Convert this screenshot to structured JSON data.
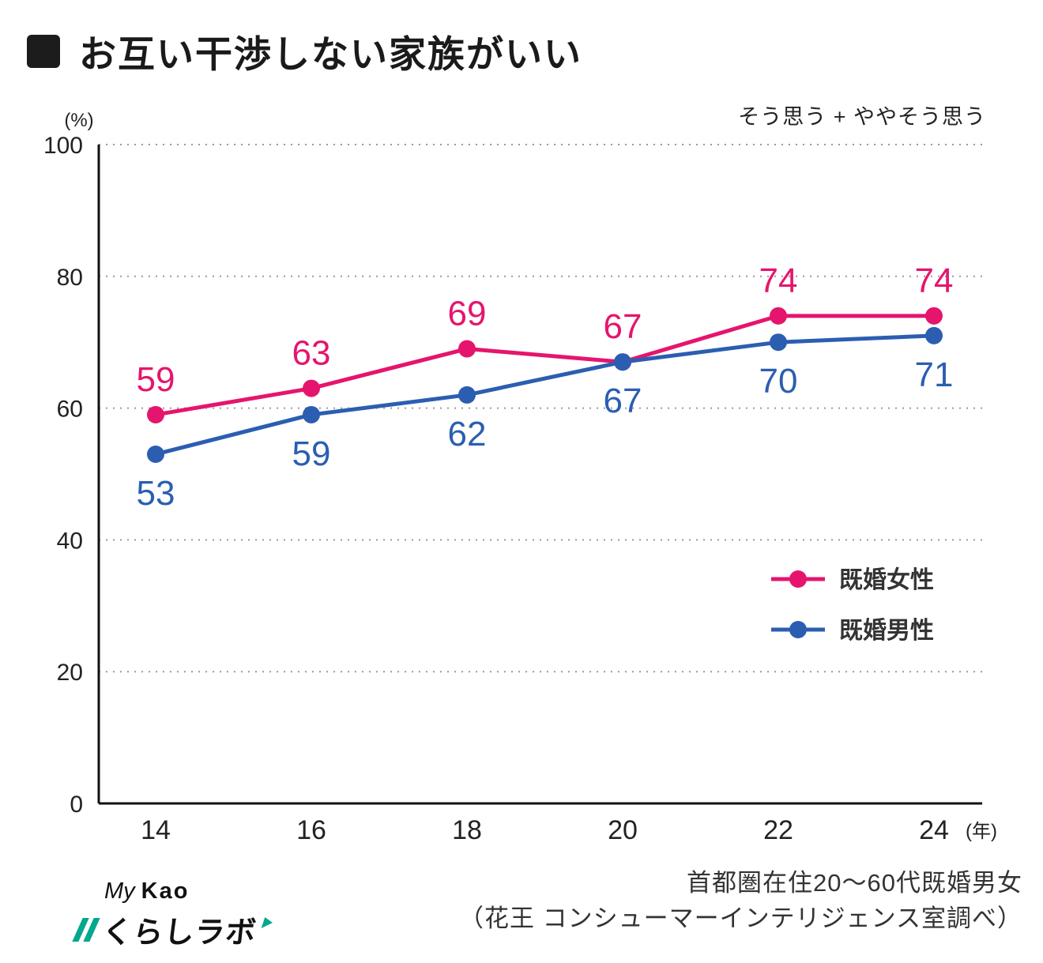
{
  "title": {
    "text": "お互い干渉しない家族がいい"
  },
  "subtitle": "そう思う + ややそう思う",
  "footer": {
    "line1": "首都圏在住20〜60代既婚男女",
    "line2": "（花王 コンシューマーインテリジェンス室調べ）"
  },
  "logo": {
    "my": "My",
    "kao": "Kao",
    "labo": "くらしラボ"
  },
  "colors": {
    "women": "#e5156d",
    "men": "#2b5eb1",
    "grid": "#9a9a9a",
    "axis": "#111111"
  },
  "chart_data": {
    "type": "line",
    "x": [
      14,
      16,
      18,
      20,
      22,
      24
    ],
    "x_suffix": "(年)",
    "unit_label": "(%)",
    "ylim": [
      0,
      100
    ],
    "yticks": [
      0,
      20,
      40,
      60,
      80,
      100
    ],
    "grid": true,
    "legend_position": "right-middle",
    "series": [
      {
        "name": "既婚女性",
        "color": "#e5156d",
        "values": [
          59,
          63,
          69,
          67,
          74,
          74
        ],
        "label_position": "above"
      },
      {
        "name": "既婚男性",
        "color": "#2b5eb1",
        "values": [
          53,
          59,
          62,
          67,
          70,
          71
        ],
        "label_position": "below"
      }
    ]
  }
}
